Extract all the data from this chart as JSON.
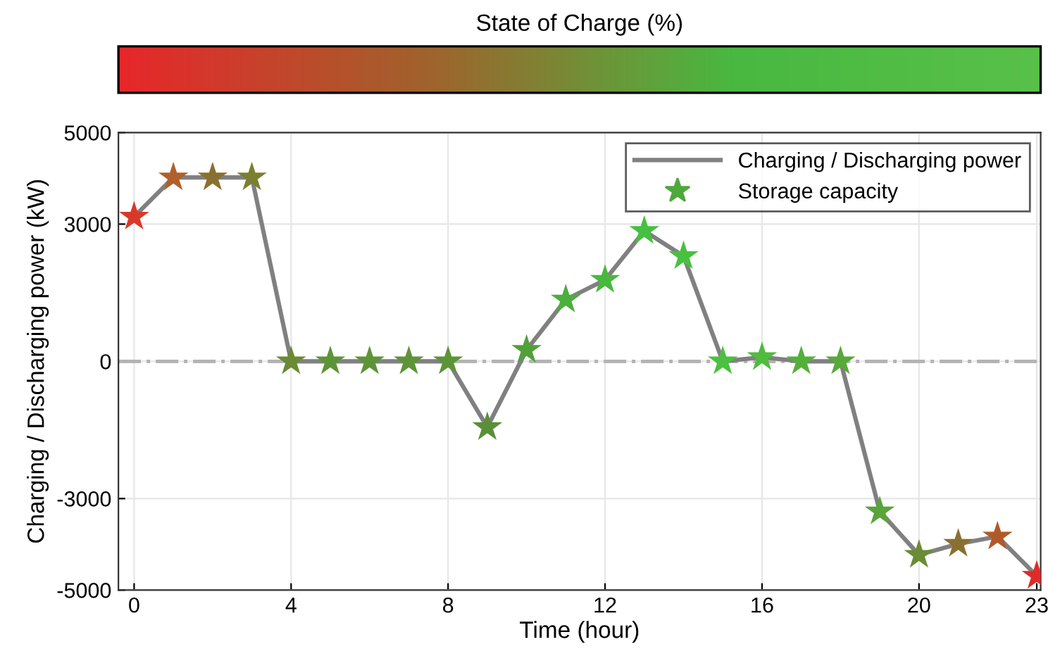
{
  "chart_data": {
    "type": "line",
    "xlabel": "Time (hour)",
    "ylabel": "Charging / Discharging power (kW)",
    "clabel": "State of Charge (%)",
    "x": [
      0,
      1,
      2,
      3,
      4,
      5,
      6,
      7,
      8,
      9,
      10,
      11,
      12,
      13,
      14,
      15,
      16,
      17,
      18,
      19,
      20,
      21,
      22,
      23
    ],
    "series": [
      {
        "name": "Charging / Discharging power",
        "color": "#808080",
        "marker": "none",
        "values": [
          3160,
          4020,
          4020,
          4020,
          0,
          0,
          0,
          0,
          0,
          -1440,
          250,
          1350,
          1780,
          2850,
          2300,
          0,
          90,
          0,
          0,
          -3280,
          -4230,
          -3990,
          -3830,
          -4690
        ]
      },
      {
        "name": "Storage capacity",
        "type": "scatter",
        "color": "#4ea83c",
        "marker": "star",
        "values": [
          3160,
          4020,
          4020,
          4020,
          0,
          0,
          0,
          0,
          0,
          -1440,
          250,
          1350,
          1780,
          2850,
          2300,
          0,
          90,
          0,
          0,
          -3280,
          -4230,
          -3990,
          -3830,
          -4690
        ],
        "colors": [
          "#d8382a",
          "#b0602a",
          "#8a7030",
          "#7a8030",
          "#6a8a35",
          "#5e9438",
          "#5e9438",
          "#5e9438",
          "#5e9438",
          "#5a8f38",
          "#52a03a",
          "#4cae3c",
          "#48b83e",
          "#45c040",
          "#48c040",
          "#4cc040",
          "#50bb3e",
          "#54b03c",
          "#58a83a",
          "#5aa43a",
          "#6a8c34",
          "#8a7030",
          "#b05a2a",
          "#e02a2a"
        ]
      }
    ],
    "xlim": [
      -0.4,
      23.1
    ],
    "xticks": [
      0,
      4,
      8,
      12,
      16,
      20,
      23
    ],
    "ylim": [
      -5000,
      5000
    ],
    "yticks": [
      -5000,
      -3000,
      0,
      3000,
      5000
    ],
    "ref_lines": [
      {
        "axis": "y",
        "value": 0,
        "color": "#b4b4b4",
        "line_style": "dashdot"
      }
    ],
    "grid": true,
    "legend": "top right"
  }
}
